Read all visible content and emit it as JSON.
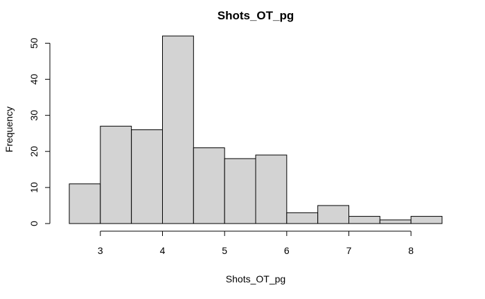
{
  "chart_data": {
    "type": "bar",
    "title": "Shots_OT_pg",
    "xlabel": "Shots_OT_pg",
    "ylabel": "Frequency",
    "bins": [
      {
        "start": 2.5,
        "end": 3.0,
        "count": 11
      },
      {
        "start": 3.0,
        "end": 3.5,
        "count": 27
      },
      {
        "start": 3.5,
        "end": 4.0,
        "count": 26
      },
      {
        "start": 4.0,
        "end": 4.5,
        "count": 52
      },
      {
        "start": 4.5,
        "end": 5.0,
        "count": 21
      },
      {
        "start": 5.0,
        "end": 5.5,
        "count": 18
      },
      {
        "start": 5.5,
        "end": 6.0,
        "count": 19
      },
      {
        "start": 6.0,
        "end": 6.5,
        "count": 3
      },
      {
        "start": 6.5,
        "end": 7.0,
        "count": 5
      },
      {
        "start": 7.0,
        "end": 7.5,
        "count": 2
      },
      {
        "start": 7.5,
        "end": 8.0,
        "count": 1
      },
      {
        "start": 8.0,
        "end": 8.5,
        "count": 2
      }
    ],
    "xticks": [
      3,
      4,
      5,
      6,
      7,
      8
    ],
    "yticks": [
      0,
      10,
      20,
      30,
      40,
      50
    ],
    "xlim": [
      2.5,
      8.5
    ],
    "ylim": [
      0,
      52
    ],
    "grid": false,
    "bar_color": "#d3d3d3",
    "edge_color": "#000000"
  }
}
